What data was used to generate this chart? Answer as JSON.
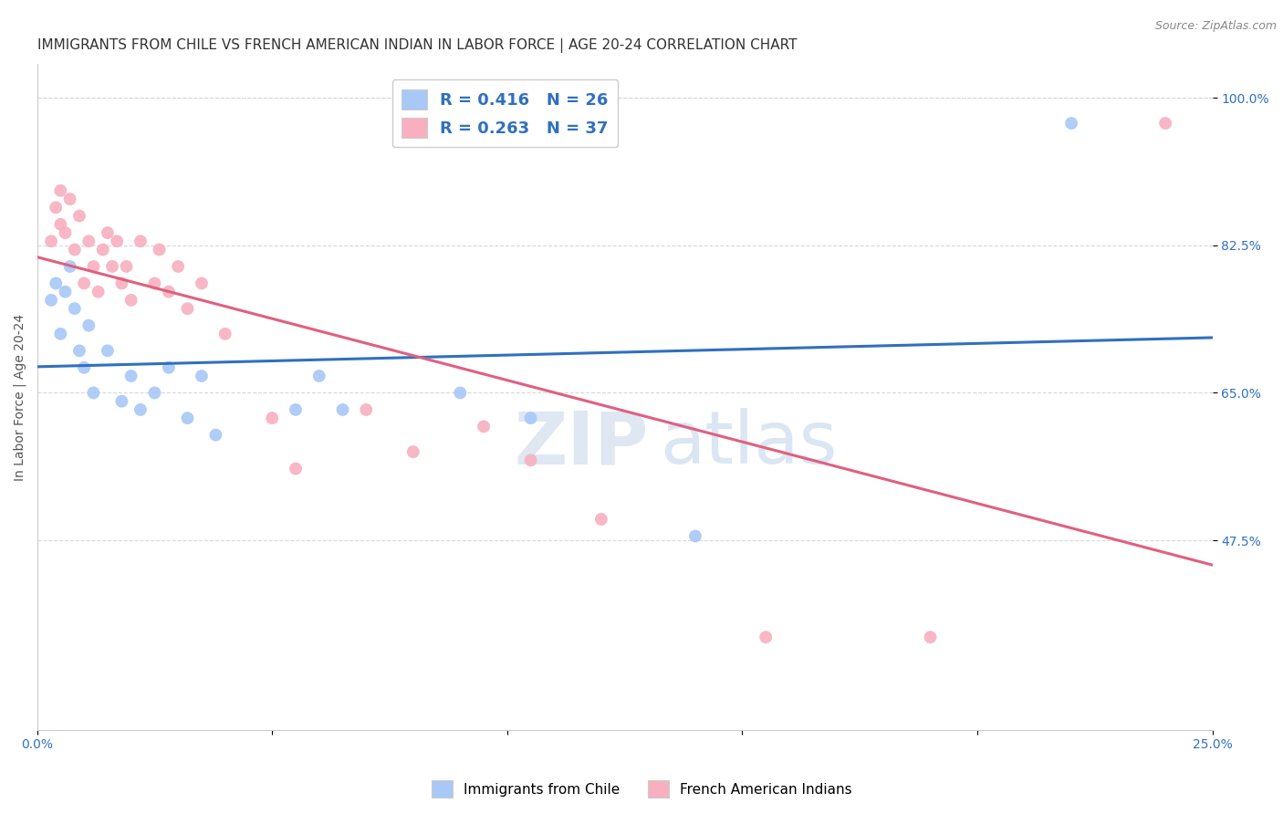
{
  "title": "IMMIGRANTS FROM CHILE VS FRENCH AMERICAN INDIAN IN LABOR FORCE | AGE 20-24 CORRELATION CHART",
  "source": "Source: ZipAtlas.com",
  "xlabel": "",
  "ylabel": "In Labor Force | Age 20-24",
  "xlim": [
    0.0,
    0.25
  ],
  "ylim": [
    0.25,
    1.04
  ],
  "xticks": [
    0.0,
    0.05,
    0.1,
    0.15,
    0.2,
    0.25
  ],
  "xticklabels": [
    "0.0%",
    "",
    "",
    "",
    "",
    "25.0%"
  ],
  "ytick_positions": [
    0.475,
    0.65,
    0.825,
    1.0
  ],
  "yticklabels": [
    "47.5%",
    "65.0%",
    "82.5%",
    "100.0%"
  ],
  "blue_R": 0.416,
  "blue_N": 26,
  "pink_R": 0.263,
  "pink_N": 37,
  "blue_color": "#a8c8f8",
  "pink_color": "#f8b0c0",
  "blue_line_color": "#3070c0",
  "pink_line_color": "#e06080",
  "legend_blue_label": "Immigrants from Chile",
  "legend_pink_label": "French American Indians",
  "watermark_zip": "ZIP",
  "watermark_atlas": "atlas",
  "background_color": "#ffffff",
  "grid_color": "#d8d8d8",
  "blue_x": [
    0.003,
    0.004,
    0.005,
    0.006,
    0.007,
    0.008,
    0.009,
    0.01,
    0.011,
    0.012,
    0.015,
    0.018,
    0.02,
    0.022,
    0.025,
    0.028,
    0.032,
    0.035,
    0.038,
    0.055,
    0.06,
    0.065,
    0.09,
    0.105,
    0.14,
    0.22
  ],
  "blue_y": [
    0.76,
    0.78,
    0.72,
    0.77,
    0.8,
    0.75,
    0.7,
    0.68,
    0.73,
    0.65,
    0.7,
    0.64,
    0.67,
    0.63,
    0.65,
    0.68,
    0.62,
    0.67,
    0.6,
    0.63,
    0.67,
    0.63,
    0.65,
    0.62,
    0.48,
    0.97
  ],
  "pink_x": [
    0.003,
    0.004,
    0.005,
    0.005,
    0.006,
    0.007,
    0.008,
    0.009,
    0.01,
    0.011,
    0.012,
    0.013,
    0.014,
    0.015,
    0.016,
    0.017,
    0.018,
    0.019,
    0.02,
    0.022,
    0.025,
    0.026,
    0.028,
    0.03,
    0.032,
    0.035,
    0.04,
    0.05,
    0.055,
    0.07,
    0.08,
    0.095,
    0.105,
    0.12,
    0.155,
    0.19,
    0.24
  ],
  "pink_y": [
    0.83,
    0.87,
    0.85,
    0.89,
    0.84,
    0.88,
    0.82,
    0.86,
    0.78,
    0.83,
    0.8,
    0.77,
    0.82,
    0.84,
    0.8,
    0.83,
    0.78,
    0.8,
    0.76,
    0.83,
    0.78,
    0.82,
    0.77,
    0.8,
    0.75,
    0.78,
    0.72,
    0.62,
    0.56,
    0.63,
    0.58,
    0.61,
    0.57,
    0.5,
    0.36,
    0.36,
    0.97
  ],
  "title_fontsize": 11,
  "axis_label_fontsize": 10,
  "tick_fontsize": 10,
  "legend_fontsize": 13,
  "source_fontsize": 9,
  "marker_size": 100
}
